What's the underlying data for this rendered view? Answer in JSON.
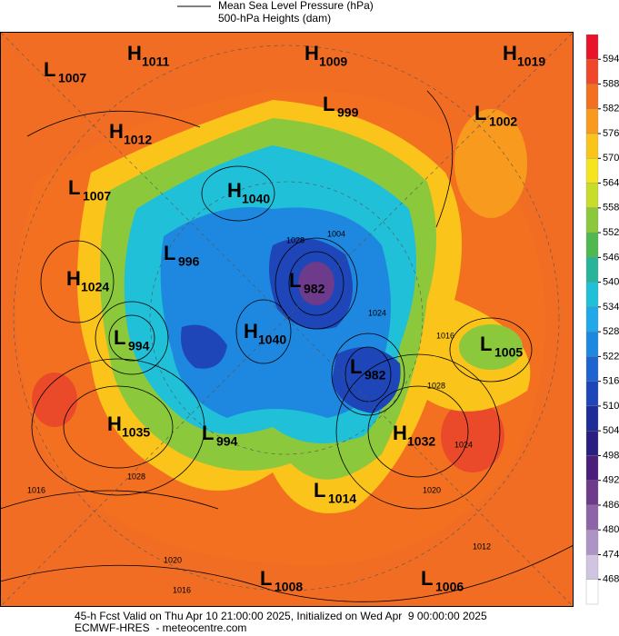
{
  "header": {
    "line1": "Mean Sea Level Pressure (hPa)",
    "line2": "500-hPa Heights (dam)"
  },
  "colorbar": {
    "labels": [
      594,
      588,
      582,
      576,
      570,
      564,
      558,
      552,
      546,
      540,
      534,
      528,
      522,
      516,
      510,
      504,
      498,
      492,
      486,
      480,
      474,
      468
    ],
    "colors": [
      "#e8142a",
      "#f0462a",
      "#f37021",
      "#f79a1e",
      "#fbc41a",
      "#f5e41e",
      "#c8dc2a",
      "#8cc83c",
      "#50b850",
      "#28b49a",
      "#20c0d8",
      "#20a8e8",
      "#1e88e0",
      "#1e64d0",
      "#1e46b8",
      "#1e2c98",
      "#2a1e80",
      "#4a1e7a",
      "#6e3a8c",
      "#8e64a8",
      "#ae94c4",
      "#d0c4e0",
      "#ffffff"
    ]
  },
  "centers": [
    {
      "kind": "L",
      "value": 1007
    },
    {
      "kind": "H",
      "value": 1011
    },
    {
      "kind": "H",
      "value": 1009
    },
    {
      "kind": "H",
      "value": 1019
    },
    {
      "kind": "L",
      "value": 999
    },
    {
      "kind": "L",
      "value": 1002
    },
    {
      "kind": "H",
      "value": 1012
    },
    {
      "kind": "L",
      "value": 1007
    },
    {
      "kind": "H",
      "value": 1040
    },
    {
      "kind": "L",
      "value": 996
    },
    {
      "kind": "H",
      "value": 1024
    },
    {
      "kind": "L",
      "value": 982
    },
    {
      "kind": "H",
      "value": 1040
    },
    {
      "kind": "L",
      "value": 994
    },
    {
      "kind": "L",
      "value": 1005
    },
    {
      "kind": "L",
      "value": 982
    },
    {
      "kind": "H",
      "value": 1035
    },
    {
      "kind": "L",
      "value": 994
    },
    {
      "kind": "H",
      "value": 1032
    },
    {
      "kind": "L",
      "value": 1014
    },
    {
      "kind": "L",
      "value": 1008
    },
    {
      "kind": "L",
      "value": 1006
    }
  ],
  "isobar_labels": [
    1004,
    1028,
    1024,
    1016,
    1020,
    1016,
    1028,
    1020,
    1016,
    1012,
    1024,
    1028
  ],
  "footer": {
    "line1": "45-h Fcst Valid on Thu Apr 10 21:00:00 2025, Initialized on Wed Apr  9 00:00:00 2025",
    "line2": "ECMWF-HRES  - meteocentre.com"
  }
}
